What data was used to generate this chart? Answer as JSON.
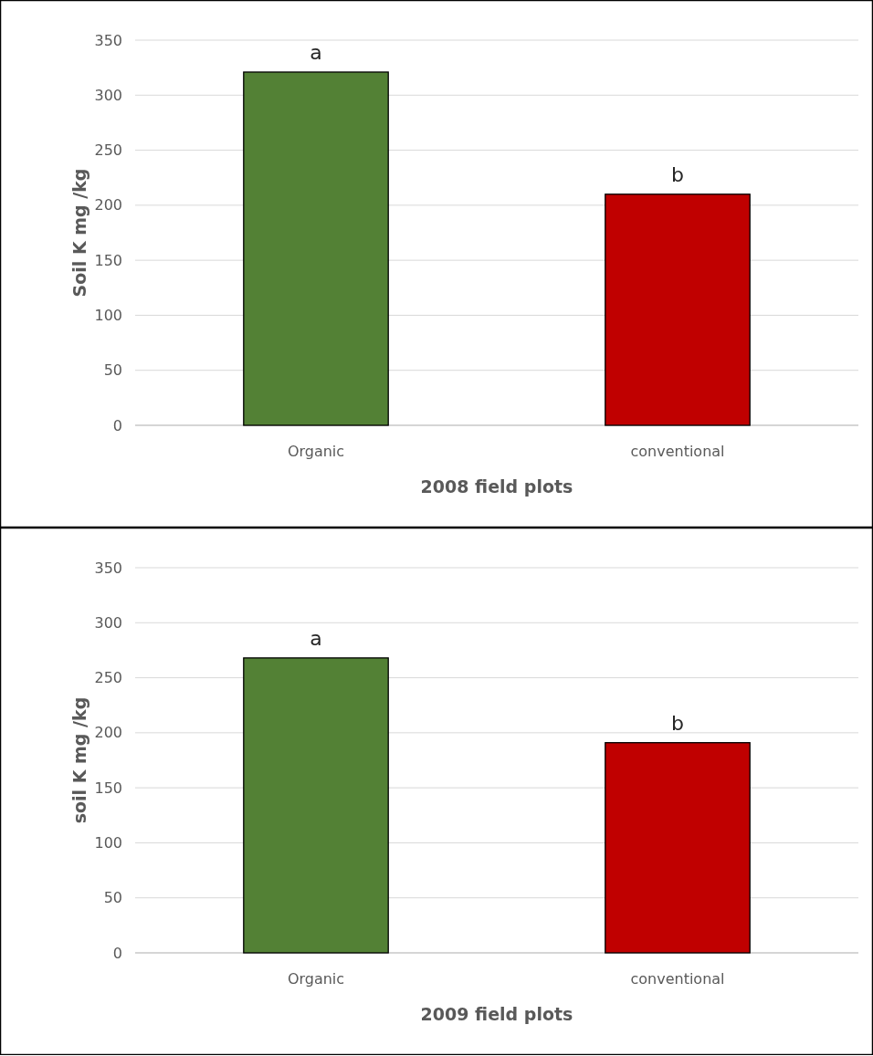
{
  "chart_data": [
    {
      "type": "bar",
      "xlabel": "2008 field plots",
      "ylabel": "Soil K mg /kg",
      "categories": [
        "Organic",
        "conventional"
      ],
      "colors": [
        "#538135",
        "#c00000"
      ],
      "values": [
        321,
        210
      ],
      "ylim": [
        0,
        350
      ],
      "yticks": [
        0,
        50,
        100,
        150,
        200,
        250,
        300,
        350
      ],
      "grid": "y",
      "annotations": [
        {
          "text": "a",
          "x": "Organic",
          "y": 321
        },
        {
          "text": "b",
          "x": "conventional",
          "y": 210
        }
      ]
    },
    {
      "type": "bar",
      "xlabel": "2009 field plots",
      "ylabel": "soil K mg /kg",
      "categories": [
        "Organic",
        "conventional"
      ],
      "colors": [
        "#538135",
        "#c00000"
      ],
      "values": [
        268,
        191
      ],
      "ylim": [
        0,
        350
      ],
      "yticks": [
        0,
        50,
        100,
        150,
        200,
        250,
        300,
        350
      ],
      "grid": "y",
      "annotations": [
        {
          "text": "a",
          "x": "Organic",
          "y": 268
        },
        {
          "text": "b",
          "x": "conventional",
          "y": 191
        }
      ]
    }
  ]
}
